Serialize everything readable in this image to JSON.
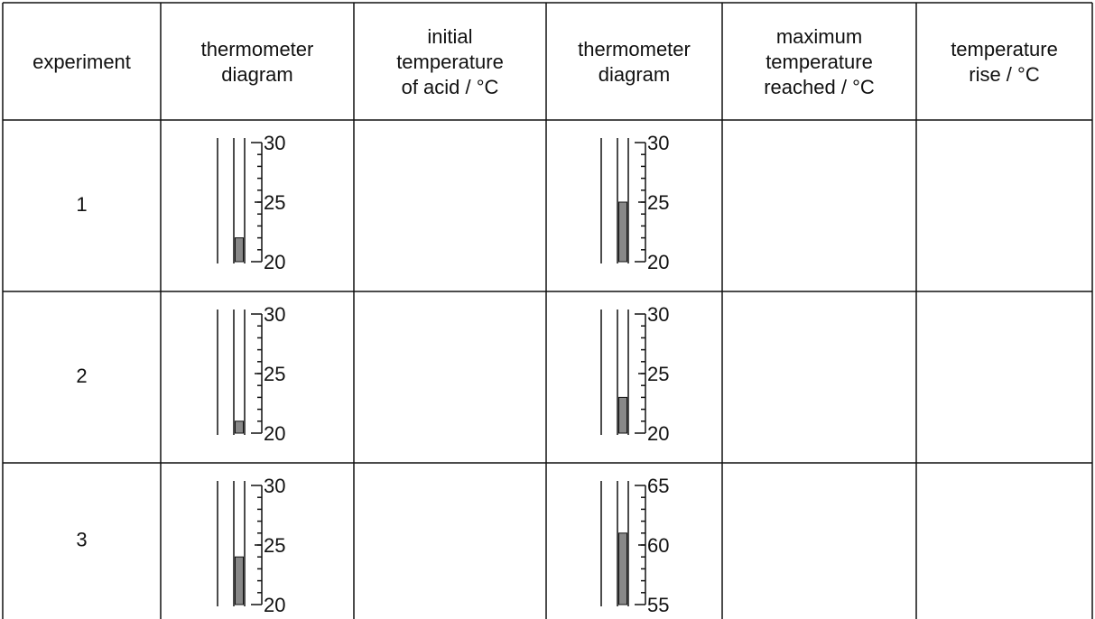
{
  "table": {
    "headers": [
      [
        "experiment"
      ],
      [
        "thermometer",
        "diagram"
      ],
      [
        "initial",
        "temperature",
        "of acid / °C"
      ],
      [
        "thermometer",
        "diagram"
      ],
      [
        "maximum",
        "temperature",
        "reached / °C"
      ],
      [
        "temperature",
        "rise / °C"
      ]
    ],
    "rows": [
      {
        "experiment": "1",
        "initial_thermometer": {
          "scale": [
            30,
            25,
            20
          ],
          "reading": 22
        },
        "final_thermometer": {
          "scale": [
            30,
            25,
            20
          ],
          "reading": 25
        }
      },
      {
        "experiment": "2",
        "initial_thermometer": {
          "scale": [
            30,
            25,
            20
          ],
          "reading": 21
        },
        "final_thermometer": {
          "scale": [
            30,
            25,
            20
          ],
          "reading": 23
        }
      },
      {
        "experiment": "3",
        "initial_thermometer": {
          "scale": [
            30,
            25,
            20
          ],
          "reading": 24
        },
        "final_thermometer": {
          "scale": [
            65,
            60,
            55
          ],
          "reading": 61
        }
      }
    ]
  }
}
